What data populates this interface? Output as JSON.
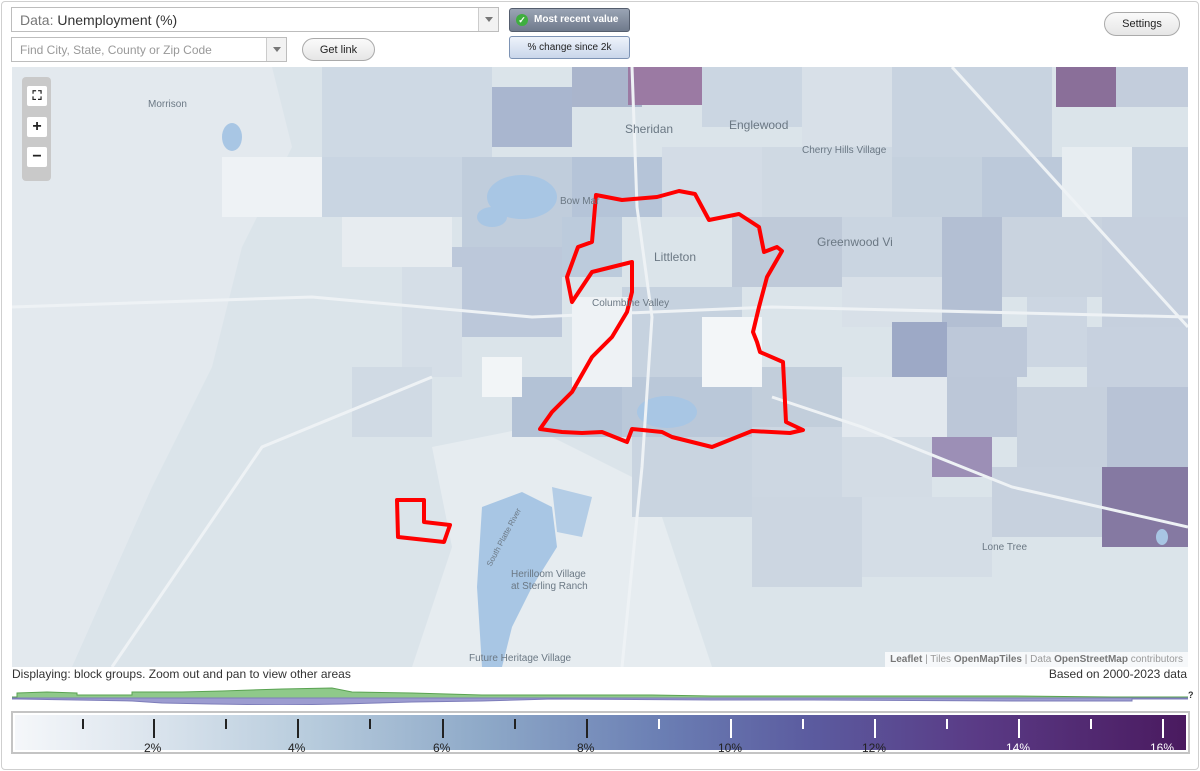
{
  "controls": {
    "data_prefix": "Data:",
    "data_value": "Unemployment (%)",
    "search_placeholder": "Find City, State, County or Zip Code",
    "get_link": "Get link",
    "most_recent": "Most recent value",
    "pct_change": "% change since 2k",
    "settings": "Settings"
  },
  "map": {
    "labels": {
      "morrison": "Morrison",
      "sheridan": "Sheridan",
      "englewood": "Englewood",
      "cherry_hills": "Cherry Hills Village",
      "bow_mar": "Bow Mar",
      "littleton": "Littleton",
      "columbine_valley": "Columbine Valley",
      "greenwood": "Greenwood Vi",
      "lone_tree": "Lone Tree",
      "herilloom_1": "Herilloom Village",
      "herilloom_2": "at Sterling Ranch",
      "future_heritage": "Future Heritage Village",
      "river": "South Platte River"
    },
    "zoom": {
      "fullscreen": "⛶",
      "plus": "+",
      "minus": "−"
    },
    "attribution": {
      "leaflet": "Leaflet",
      "sep1": " | Tiles ",
      "tiles": "OpenMapTiles",
      "sep2": " | Data ",
      "osm": "OpenStreetMap",
      "contrib": " contributors"
    },
    "highlight_color": "#ff0000"
  },
  "status": {
    "displaying": "Displaying: block groups. Zoom out and pan to view other areas",
    "based_on": "Based on 2000-2023 data",
    "question": "?"
  },
  "legend": {
    "labels": [
      "2%",
      "4%",
      "6%",
      "8%",
      "10%",
      "12%",
      "14%",
      "16%"
    ]
  }
}
